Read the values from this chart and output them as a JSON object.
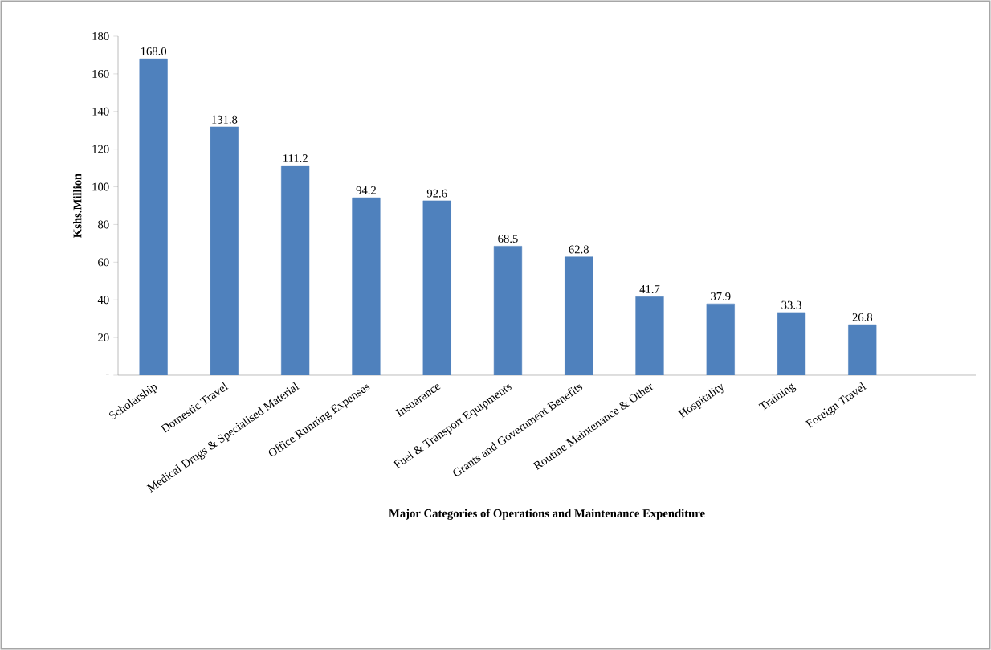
{
  "chart_data": {
    "type": "bar",
    "categories": [
      "Scholarship",
      "Domestic Travel",
      "Medical Drugs & Specialised Material",
      "Office Running Expenses",
      "Insuarance",
      "Fuel & Transport Equipments",
      "Grants and Government Benefits",
      "Routine Maintenance & Other",
      "Hospitality",
      "Training",
      "Foreign Travel"
    ],
    "values": [
      168.0,
      131.8,
      111.2,
      94.2,
      92.6,
      68.5,
      62.8,
      41.7,
      37.9,
      33.3,
      26.8
    ],
    "color": "#4f81bd",
    "xlabel": "Major Categories of Operations and Maintenance Expenditure",
    "ylabel": "Kshs.Million",
    "ylim": [
      0,
      180
    ],
    "yticks": [
      {
        "value": 0,
        "label": "-"
      },
      20,
      40,
      60,
      80,
      100,
      120,
      140,
      160,
      180
    ],
    "value_labels": [
      "168.0",
      "131.8",
      "111.2",
      "94.2",
      "92.6",
      "68.5",
      "62.8",
      "41.7",
      "37.9",
      "33.3",
      "26.8"
    ],
    "grid": false
  }
}
